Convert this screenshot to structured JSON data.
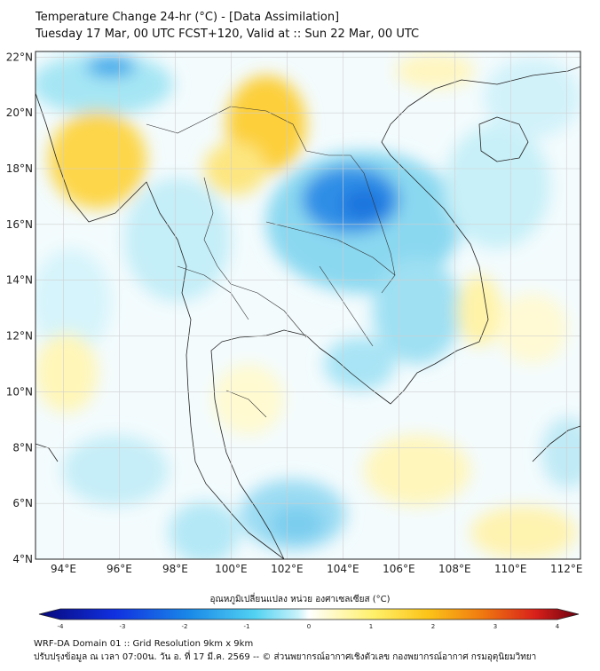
{
  "title": {
    "line1": "Temperature Change 24-hr (°C) - [Data Assimilation]",
    "line2": "Tuesday 17 Mar, 00 UTC FCST+120, Valid at :: Sun 22 Mar, 00 UTC"
  },
  "map": {
    "lon_range": [
      93,
      112.5
    ],
    "lat_range": [
      4,
      22.2
    ],
    "x_ticks": [
      "94°E",
      "96°E",
      "98°E",
      "100°E",
      "102°E",
      "104°E",
      "106°E",
      "108°E",
      "110°E",
      "112°E"
    ],
    "y_ticks": [
      "22°N",
      "20°N",
      "18°N",
      "16°N",
      "14°N",
      "12°N",
      "10°N",
      "8°N",
      "6°N",
      "4°N"
    ],
    "grid": true
  },
  "colorbar": {
    "title": "อุณหภูมิเปลี่ยนแปลง หน่วย องศาเซลเซียส (°C)",
    "min": -4,
    "max": 4,
    "tick_labels": [
      "-4",
      "-3",
      "-2",
      "-1",
      "0",
      "1",
      "2",
      "3",
      "4"
    ]
  },
  "footer": {
    "line1": "WRF-DA Domain 01 :: Grid Resolution 9km x 9km",
    "line2": "ปรับปรุงข้อมูล ณ เวลา 07:00น. วัน อ. ที่ 17 มี.ค. 2569 -- © ส่วนพยากรณ์อากาศเชิงตัวเลข กองพยากรณ์อากาศ กรมอุตุนิยมวิทยา"
  },
  "colors": {
    "cold_strong": "#1a6fe0",
    "cold": "#7fd8f0",
    "neutral": "#ffffff",
    "warm": "#fff5a0",
    "warm_strong": "#f4b000",
    "border": "#222222"
  }
}
